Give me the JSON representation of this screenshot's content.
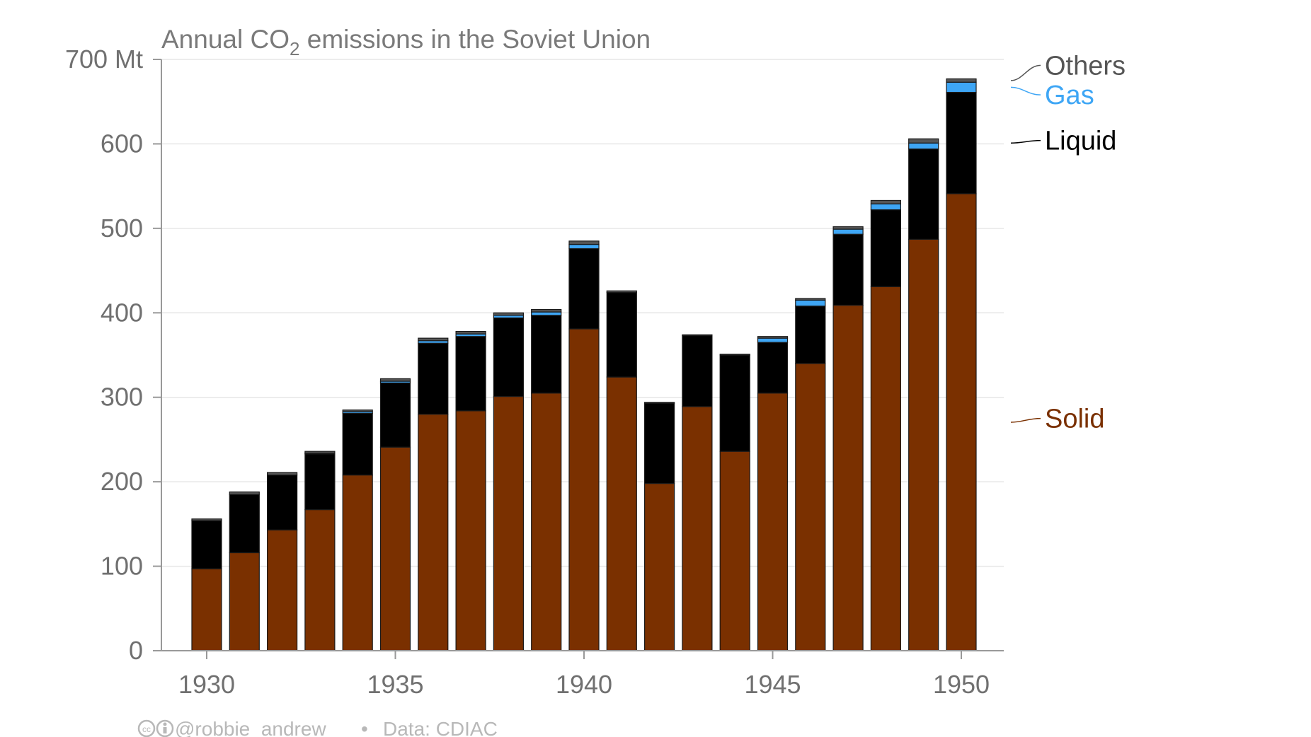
{
  "chart_data": {
    "type": "bar",
    "stacked": true,
    "title": {
      "prefix": "Annual CO",
      "subscript": "2",
      "suffix": " emissions in the Soviet Union"
    },
    "y_unit_label": "700 Mt",
    "ylim": [
      0,
      700
    ],
    "yticks": [
      0,
      100,
      200,
      300,
      400,
      500,
      600,
      700
    ],
    "ytick_labels": [
      "0",
      "100",
      "200",
      "300",
      "400",
      "500",
      "600",
      "700 Mt"
    ],
    "xticks": [
      "1930",
      "1935",
      "1940",
      "1945",
      "1950"
    ],
    "grid": true,
    "legend_placement": "right, inline labels",
    "categories": [
      "1930",
      "1931",
      "1932",
      "1933",
      "1934",
      "1935",
      "1936",
      "1937",
      "1938",
      "1939",
      "1940",
      "1941",
      "1942",
      "1943",
      "1944",
      "1945",
      "1946",
      "1947",
      "1948",
      "1949",
      "1950"
    ],
    "series": [
      {
        "name": "Solid",
        "color": "#7a3000",
        "values": [
          97,
          116,
          143,
          167,
          208,
          241,
          280,
          284,
          301,
          305,
          381,
          324,
          198,
          289,
          236,
          305,
          340,
          409,
          431,
          487,
          541
        ]
      },
      {
        "name": "Liquid",
        "color": "#000000",
        "values": [
          57,
          69,
          65,
          66,
          73,
          76,
          84,
          88,
          93,
          92,
          95,
          100,
          95,
          84,
          114,
          60,
          68,
          84,
          91,
          107,
          120
        ]
      },
      {
        "name": "Gas",
        "color": "#3ea6f5",
        "values": [
          0,
          0,
          0,
          1,
          2,
          2,
          3,
          3,
          3,
          4,
          5,
          0,
          0,
          0,
          0,
          5,
          7,
          6,
          7,
          7,
          12
        ]
      },
      {
        "name": "Others",
        "color": "#555555",
        "values": [
          2,
          3,
          3,
          2,
          2,
          3,
          3,
          3,
          3,
          3,
          4,
          2,
          1,
          1,
          1,
          2,
          2,
          3,
          4,
          5,
          4
        ]
      }
    ]
  },
  "footer": {
    "credit_icons": "cc-by-icons",
    "author": "@robbie_andrew",
    "separator": "•",
    "source": "Data: CDIAC"
  }
}
